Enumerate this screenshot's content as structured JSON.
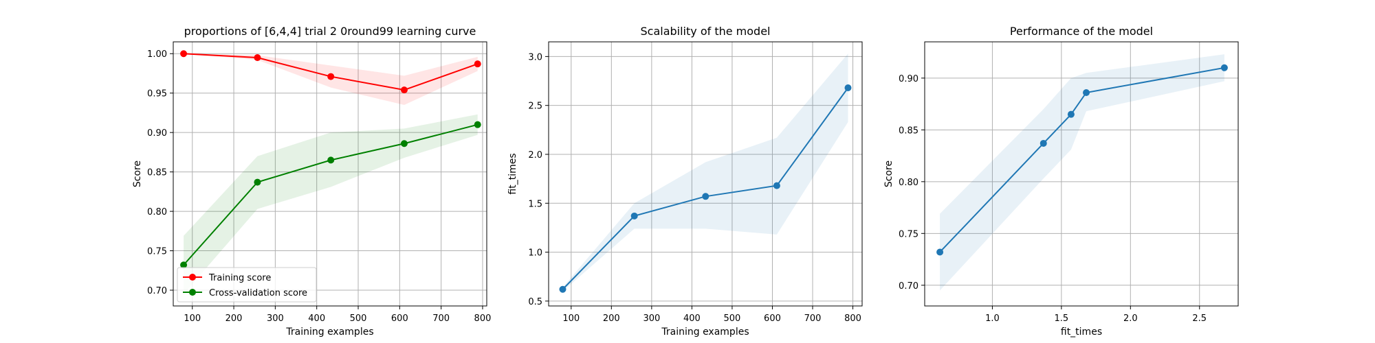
{
  "chart_data": [
    {
      "type": "line",
      "title": "proportions of [6,4,4] trial 2 0round99 learning curve",
      "xlabel": "Training examples",
      "ylabel": "Score",
      "xlim": [
        54,
        810
      ],
      "ylim": [
        0.68,
        1.015
      ],
      "xticks": [
        100,
        200,
        300,
        400,
        500,
        600,
        700,
        800
      ],
      "yticks": [
        0.7,
        0.75,
        0.8,
        0.85,
        0.9,
        0.95,
        1.0
      ],
      "ytick_labels": [
        "0.70",
        "0.75",
        "0.80",
        "0.85",
        "0.90",
        "0.95",
        "1.00"
      ],
      "grid": true,
      "legend": "lower-left",
      "x": [
        79,
        257,
        434,
        611,
        788
      ],
      "series": [
        {
          "name": "Training score",
          "color": "#ff0000",
          "band_color": "#ff0000",
          "values": [
            1.0,
            0.995,
            0.971,
            0.954,
            0.987
          ],
          "lower": [
            1.0,
            0.992,
            0.957,
            0.935,
            0.978
          ],
          "upper": [
            1.0,
            0.998,
            0.985,
            0.972,
            0.996
          ]
        },
        {
          "name": "Cross-validation score",
          "color": "#008000",
          "band_color": "#008000",
          "values": [
            0.732,
            0.837,
            0.865,
            0.886,
            0.91
          ],
          "lower": [
            0.695,
            0.803,
            0.831,
            0.868,
            0.897
          ],
          "upper": [
            0.769,
            0.87,
            0.9,
            0.905,
            0.923
          ]
        }
      ]
    },
    {
      "type": "line",
      "title": "Scalability of the model",
      "xlabel": "Training examples",
      "ylabel": "fit_times",
      "xlim": [
        44,
        823
      ],
      "ylim": [
        0.45,
        3.15
      ],
      "xticks": [
        100,
        200,
        300,
        400,
        500,
        600,
        700,
        800
      ],
      "yticks": [
        0.5,
        1.0,
        1.5,
        2.0,
        2.5,
        3.0
      ],
      "ytick_labels": [
        "0.5",
        "1.0",
        "1.5",
        "2.0",
        "2.5",
        "3.0"
      ],
      "grid": true,
      "x": [
        79,
        257,
        434,
        611,
        788
      ],
      "series": [
        {
          "color": "#1f77b4",
          "band_color": "#1f77b4",
          "values": [
            0.62,
            1.37,
            1.57,
            1.68,
            2.68
          ],
          "lower": [
            0.6,
            1.24,
            1.24,
            1.18,
            2.33
          ],
          "upper": [
            0.64,
            1.5,
            1.92,
            2.17,
            3.03
          ]
        }
      ]
    },
    {
      "type": "line",
      "title": "Performance of the model",
      "xlabel": "fit_times",
      "ylabel": "Score",
      "xlim": [
        0.51,
        2.78
      ],
      "ylim": [
        0.68,
        0.935
      ],
      "xticks": [
        1.0,
        1.5,
        2.0,
        2.5
      ],
      "xtick_labels": [
        "1.0",
        "1.5",
        "2.0",
        "2.5"
      ],
      "yticks": [
        0.7,
        0.75,
        0.8,
        0.85,
        0.9
      ],
      "ytick_labels": [
        "0.70",
        "0.75",
        "0.80",
        "0.85",
        "0.90"
      ],
      "grid": true,
      "x": [
        0.62,
        1.37,
        1.57,
        1.68,
        2.68
      ],
      "series": [
        {
          "color": "#1f77b4",
          "band_color": "#1f77b4",
          "values": [
            0.732,
            0.837,
            0.865,
            0.886,
            0.91
          ],
          "lower": [
            0.695,
            0.803,
            0.831,
            0.868,
            0.897
          ],
          "upper": [
            0.769,
            0.87,
            0.9,
            0.905,
            0.923
          ]
        }
      ]
    }
  ]
}
